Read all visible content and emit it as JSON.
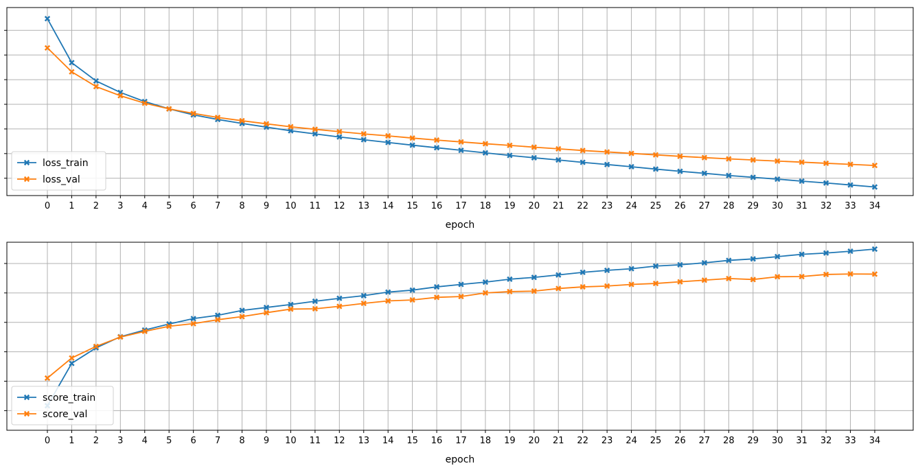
{
  "chart_data": [
    {
      "type": "line",
      "title": "",
      "xlabel": "epoch",
      "ylabel": "",
      "x": [
        0,
        1,
        2,
        3,
        4,
        5,
        6,
        7,
        8,
        9,
        10,
        11,
        12,
        13,
        14,
        15,
        16,
        17,
        18,
        19,
        20,
        21,
        22,
        23,
        24,
        25,
        26,
        27,
        28,
        29,
        30,
        31,
        32,
        33,
        34
      ],
      "ylim": [
        0.0,
        1.0
      ],
      "grid": true,
      "legend": "lower left",
      "series": [
        {
          "name": "loss_train",
          "color": "#1f77b4",
          "marker": "x-filled",
          "values": [
            0.959,
            0.718,
            0.618,
            0.555,
            0.505,
            0.465,
            0.432,
            0.407,
            0.385,
            0.365,
            0.345,
            0.328,
            0.311,
            0.296,
            0.281,
            0.266,
            0.252,
            0.238,
            0.224,
            0.21,
            0.197,
            0.185,
            0.172,
            0.16,
            0.148,
            0.135,
            0.123,
            0.112,
            0.1,
            0.09,
            0.08,
            0.069,
            0.059,
            0.048,
            0.037
          ]
        },
        {
          "name": "loss_val",
          "color": "#ff7f0e",
          "marker": "x-filled",
          "values": [
            0.799,
            0.668,
            0.587,
            0.537,
            0.496,
            0.465,
            0.44,
            0.418,
            0.4,
            0.383,
            0.367,
            0.353,
            0.34,
            0.328,
            0.317,
            0.305,
            0.294,
            0.284,
            0.274,
            0.265,
            0.255,
            0.246,
            0.237,
            0.229,
            0.221,
            0.213,
            0.205,
            0.198,
            0.191,
            0.185,
            0.179,
            0.173,
            0.167,
            0.161,
            0.155
          ]
        }
      ]
    },
    {
      "type": "line",
      "title": "",
      "xlabel": "epoch",
      "ylabel": "",
      "x": [
        0,
        1,
        2,
        3,
        4,
        5,
        6,
        7,
        8,
        9,
        10,
        11,
        12,
        13,
        14,
        15,
        16,
        17,
        18,
        19,
        20,
        21,
        22,
        23,
        24,
        25,
        26,
        27,
        28,
        29,
        30,
        31,
        32,
        33,
        34
      ],
      "ylim": [
        0.0,
        1.0
      ],
      "grid": true,
      "legend": "lower left",
      "series": [
        {
          "name": "score_train",
          "color": "#1f77b4",
          "marker": "x-filled",
          "values": [
            0.05,
            0.309,
            0.404,
            0.472,
            0.513,
            0.55,
            0.583,
            0.603,
            0.633,
            0.651,
            0.669,
            0.689,
            0.707,
            0.723,
            0.745,
            0.757,
            0.777,
            0.792,
            0.806,
            0.824,
            0.835,
            0.85,
            0.866,
            0.878,
            0.888,
            0.904,
            0.912,
            0.924,
            0.939,
            0.948,
            0.962,
            0.976,
            0.984,
            0.995,
            1.008
          ]
        },
        {
          "name": "score_val",
          "color": "#ff7f0e",
          "marker": "x-filled",
          "values": [
            0.219,
            0.342,
            0.413,
            0.47,
            0.505,
            0.536,
            0.552,
            0.576,
            0.595,
            0.619,
            0.641,
            0.643,
            0.658,
            0.676,
            0.691,
            0.697,
            0.713,
            0.718,
            0.74,
            0.748,
            0.751,
            0.767,
            0.777,
            0.782,
            0.792,
            0.798,
            0.808,
            0.818,
            0.828,
            0.822,
            0.839,
            0.84,
            0.853,
            0.856,
            0.855
          ]
        }
      ]
    }
  ]
}
